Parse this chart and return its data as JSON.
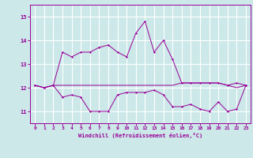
{
  "xlabel": "Windchill (Refroidissement éolien,°C)",
  "bg_color": "#cce8e8",
  "grid_color": "#ffffff",
  "line_color": "#990099",
  "x": [
    0,
    1,
    2,
    3,
    4,
    5,
    6,
    7,
    8,
    9,
    10,
    11,
    12,
    13,
    14,
    15,
    16,
    17,
    18,
    19,
    20,
    21,
    22,
    23
  ],
  "line1": [
    12.1,
    12.0,
    12.1,
    11.6,
    11.7,
    11.6,
    11.0,
    11.0,
    11.0,
    11.7,
    11.8,
    11.8,
    11.8,
    11.9,
    11.7,
    11.2,
    11.2,
    11.3,
    11.1,
    11.0,
    11.4,
    11.0,
    11.1,
    12.1
  ],
  "line2": [
    12.1,
    12.0,
    12.1,
    13.5,
    13.3,
    13.5,
    13.5,
    13.7,
    13.8,
    13.5,
    13.3,
    14.3,
    14.8,
    13.5,
    14.0,
    13.2,
    12.2,
    12.2,
    12.2,
    12.2,
    12.2,
    12.1,
    12.2,
    12.1
  ],
  "line3": [
    12.1,
    12.0,
    12.1,
    12.1,
    12.1,
    12.1,
    12.1,
    12.1,
    12.1,
    12.1,
    12.1,
    12.1,
    12.1,
    12.1,
    12.1,
    12.1,
    12.2,
    12.2,
    12.2,
    12.2,
    12.2,
    12.1,
    12.0,
    12.1
  ],
  "ylim": [
    10.5,
    15.5
  ],
  "yticks": [
    11,
    12,
    13,
    14,
    15
  ],
  "xticks": [
    0,
    1,
    2,
    3,
    4,
    5,
    6,
    7,
    8,
    9,
    10,
    11,
    12,
    13,
    14,
    15,
    16,
    17,
    18,
    19,
    20,
    21,
    22,
    23
  ]
}
